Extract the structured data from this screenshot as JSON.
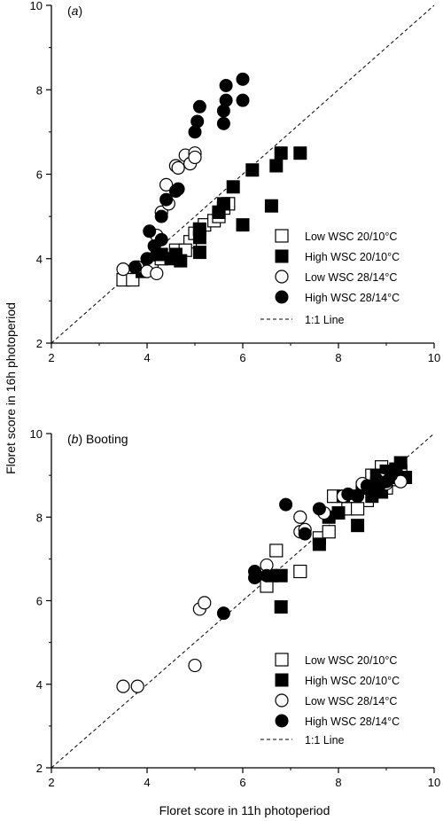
{
  "chart_data": [
    {
      "type": "scatter",
      "panel_label": "(a)",
      "panel_suffix": "",
      "xlim": [
        2,
        10
      ],
      "ylim": [
        2,
        10
      ],
      "x_ticks": [
        "2",
        "4",
        "6",
        "8",
        "10"
      ],
      "y_ticks": [
        "2",
        "4",
        "6",
        "8",
        "10"
      ],
      "legend_position": "bottom-right",
      "reference_line": "1:1 Line",
      "series": [
        {
          "name": "Low WSC 20/10°C",
          "marker": "open-square",
          "points": [
            [
              3.5,
              3.5
            ],
            [
              3.7,
              3.5
            ],
            [
              3.9,
              3.7
            ],
            [
              4.1,
              3.8
            ],
            [
              4.3,
              4.0
            ],
            [
              4.6,
              4.2
            ],
            [
              4.9,
              4.4
            ],
            [
              5.0,
              4.6
            ],
            [
              5.1,
              4.7
            ],
            [
              5.2,
              4.8
            ],
            [
              5.4,
              4.9
            ],
            [
              5.5,
              5.0
            ],
            [
              5.6,
              5.2
            ],
            [
              5.7,
              5.3
            ],
            [
              5.5,
              5.1
            ],
            [
              4.8,
              4.2
            ]
          ]
        },
        {
          "name": "High WSC 20/10°C",
          "marker": "filled-square",
          "points": [
            [
              3.9,
              3.7
            ],
            [
              4.3,
              4.1
            ],
            [
              4.5,
              4.0
            ],
            [
              4.6,
              4.1
            ],
            [
              4.7,
              3.95
            ],
            [
              5.1,
              4.15
            ],
            [
              5.1,
              4.5
            ],
            [
              5.1,
              4.7
            ],
            [
              5.5,
              5.1
            ],
            [
              5.6,
              5.3
            ],
            [
              5.8,
              5.7
            ],
            [
              6.0,
              4.8
            ],
            [
              6.2,
              6.1
            ],
            [
              6.6,
              5.25
            ],
            [
              6.7,
              6.2
            ],
            [
              6.8,
              6.5
            ],
            [
              7.2,
              6.5
            ]
          ]
        },
        {
          "name": "Low WSC 28/14°C",
          "marker": "open-circle",
          "points": [
            [
              3.5,
              3.75
            ],
            [
              3.8,
              3.8
            ],
            [
              4.0,
              3.7
            ],
            [
              4.2,
              3.65
            ],
            [
              4.2,
              4.55
            ],
            [
              4.3,
              5.1
            ],
            [
              4.4,
              5.75
            ],
            [
              4.45,
              5.3
            ],
            [
              4.6,
              6.2
            ],
            [
              4.65,
              6.15
            ],
            [
              4.8,
              6.45
            ],
            [
              4.9,
              6.25
            ],
            [
              5.0,
              6.5
            ],
            [
              5.0,
              6.4
            ]
          ]
        },
        {
          "name": "High WSC 28/14°C",
          "marker": "filled-circle",
          "points": [
            [
              3.75,
              3.8
            ],
            [
              4.0,
              4.0
            ],
            [
              4.05,
              4.65
            ],
            [
              4.15,
              4.3
            ],
            [
              4.2,
              4.1
            ],
            [
              4.3,
              4.45
            ],
            [
              4.3,
              5.0
            ],
            [
              4.4,
              5.4
            ],
            [
              4.6,
              5.6
            ],
            [
              4.65,
              5.65
            ],
            [
              5.0,
              7.0
            ],
            [
              5.05,
              7.25
            ],
            [
              5.1,
              7.6
            ],
            [
              5.6,
              7.2
            ],
            [
              5.6,
              7.5
            ],
            [
              5.65,
              8.1
            ],
            [
              5.65,
              7.75
            ],
            [
              6.0,
              8.25
            ],
            [
              6.0,
              7.75
            ]
          ]
        }
      ]
    },
    {
      "type": "scatter",
      "panel_label": "(b)",
      "panel_suffix": "Booting",
      "xlim": [
        2,
        10
      ],
      "ylim": [
        2,
        10
      ],
      "x_ticks": [
        "2",
        "4",
        "6",
        "8",
        "10"
      ],
      "y_ticks": [
        "2",
        "4",
        "6",
        "8",
        "10"
      ],
      "legend_position": "bottom-right",
      "reference_line": "1:1 Line",
      "series": [
        {
          "name": "Low WSC 20/10°C",
          "marker": "open-square",
          "points": [
            [
              6.5,
              6.35
            ],
            [
              6.7,
              7.2
            ],
            [
              7.2,
              6.7
            ],
            [
              7.6,
              7.5
            ],
            [
              7.8,
              7.65
            ],
            [
              7.9,
              8.5
            ],
            [
              8.2,
              8.2
            ],
            [
              8.3,
              8.5
            ],
            [
              8.5,
              8.6
            ],
            [
              8.6,
              8.4
            ],
            [
              8.7,
              9.0
            ],
            [
              8.8,
              8.8
            ],
            [
              8.9,
              9.2
            ],
            [
              9.0,
              8.7
            ],
            [
              9.1,
              9.0
            ],
            [
              9.2,
              8.9
            ],
            [
              9.3,
              9.1
            ],
            [
              8.4,
              8.2
            ],
            [
              8.9,
              9.0
            ]
          ]
        },
        {
          "name": "High WSC 20/10°C",
          "marker": "filled-square",
          "points": [
            [
              6.6,
              6.6
            ],
            [
              6.8,
              5.85
            ],
            [
              6.8,
              6.6
            ],
            [
              7.6,
              7.35
            ],
            [
              7.8,
              8.0
            ],
            [
              8.0,
              8.1
            ],
            [
              8.1,
              8.5
            ],
            [
              8.4,
              7.8
            ],
            [
              8.5,
              8.7
            ],
            [
              8.7,
              8.5
            ],
            [
              8.8,
              9.0
            ],
            [
              9.0,
              9.1
            ],
            [
              9.1,
              8.95
            ],
            [
              9.2,
              9.0
            ],
            [
              9.3,
              9.3
            ],
            [
              9.4,
              8.95
            ],
            [
              8.9,
              8.6
            ],
            [
              9.2,
              9.15
            ]
          ]
        },
        {
          "name": "Low WSC 28/14°C",
          "marker": "open-circle",
          "points": [
            [
              3.5,
              3.95
            ],
            [
              3.8,
              3.95
            ],
            [
              5.0,
              4.45
            ],
            [
              5.1,
              5.8
            ],
            [
              5.2,
              5.95
            ],
            [
              6.5,
              6.85
            ],
            [
              7.2,
              7.65
            ],
            [
              7.2,
              8.0
            ],
            [
              7.3,
              7.7
            ],
            [
              7.7,
              8.1
            ],
            [
              8.1,
              8.5
            ],
            [
              8.5,
              8.8
            ],
            [
              8.9,
              8.9
            ],
            [
              9.3,
              8.85
            ],
            [
              9.0,
              8.8
            ]
          ]
        },
        {
          "name": "High WSC 28/14°C",
          "marker": "filled-circle",
          "points": [
            [
              5.6,
              5.7
            ],
            [
              6.25,
              6.55
            ],
            [
              6.25,
              6.7
            ],
            [
              6.5,
              6.6
            ],
            [
              6.9,
              8.3
            ],
            [
              7.3,
              7.6
            ],
            [
              7.6,
              8.2
            ],
            [
              8.2,
              8.55
            ],
            [
              8.4,
              8.5
            ],
            [
              8.6,
              8.75
            ],
            [
              8.7,
              8.7
            ],
            [
              8.8,
              8.9
            ],
            [
              8.85,
              8.75
            ],
            [
              9.0,
              8.85
            ],
            [
              9.1,
              9.0
            ]
          ]
        }
      ]
    }
  ],
  "labels": {
    "xlabel": "Floret score in 11h  photoperiod",
    "ylabel": "Floret score in 16h photoperiod"
  }
}
